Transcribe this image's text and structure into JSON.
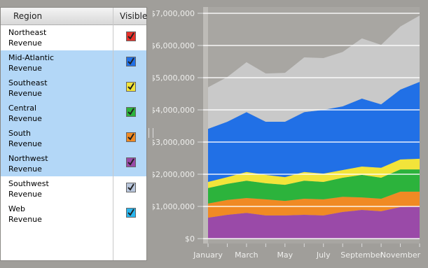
{
  "table": {
    "headers": [
      "Region",
      "Visible"
    ],
    "rows": [
      {
        "label": "Northeast\nRevenue",
        "color": "#e8312a",
        "visible": true,
        "selected": false
      },
      {
        "label": "Mid-Atlantic\nRevenue",
        "color": "#2170e6",
        "visible": true,
        "selected": true
      },
      {
        "label": "Southeast\nRevenue",
        "color": "#f2e43a",
        "visible": true,
        "selected": true
      },
      {
        "label": "Central\nRevenue",
        "color": "#2cb33c",
        "visible": true,
        "selected": true
      },
      {
        "label": "South\nRevenue",
        "color": "#f08a24",
        "visible": true,
        "selected": true
      },
      {
        "label": "Northwest\nRevenue",
        "color": "#9a4aa8",
        "visible": true,
        "selected": true
      },
      {
        "label": "Southwest\nRevenue",
        "color": "#b9c6dc",
        "visible": true,
        "selected": false
      },
      {
        "label": "Web\nRevenue",
        "color": "#29b6ee",
        "visible": true,
        "selected": false
      }
    ]
  },
  "chart_data": {
    "type": "stacked-area",
    "categories": [
      "January",
      null,
      "March",
      null,
      "May",
      null,
      "July",
      null,
      "September",
      null,
      "November",
      null
    ],
    "series": [
      {
        "color": "#9a4aa8",
        "values": [
          650000,
          740000,
          800000,
          720000,
          720000,
          740000,
          720000,
          830000,
          890000,
          850000,
          980000,
          1000000
        ]
      },
      {
        "color": "#f08a24",
        "values": [
          440000,
          460000,
          460000,
          500000,
          450000,
          500000,
          500000,
          470000,
          390000,
          390000,
          480000,
          460000
        ]
      },
      {
        "color": "#2cb33c",
        "values": [
          480000,
          500000,
          540000,
          500000,
          500000,
          560000,
          540000,
          590000,
          700000,
          650000,
          690000,
          690000
        ]
      },
      {
        "color": "#f2e43a",
        "values": [
          190000,
          210000,
          270000,
          260000,
          240000,
          270000,
          260000,
          240000,
          260000,
          310000,
          310000,
          330000
        ]
      },
      {
        "color": "#2170e6",
        "values": [
          1650000,
          1720000,
          1860000,
          1650000,
          1720000,
          1860000,
          1980000,
          1980000,
          2110000,
          1970000,
          2170000,
          2390000
        ]
      },
      {
        "color": "#c9c9c9",
        "values": [
          1290000,
          1390000,
          1550000,
          1500000,
          1520000,
          1700000,
          1610000,
          1690000,
          1870000,
          1850000,
          1960000,
          2060000
        ]
      }
    ],
    "ylim": [
      0,
      7000000
    ],
    "yticks": [
      {
        "value": 0,
        "label": "$0"
      },
      {
        "value": 1000000,
        "label": "$1,000,000"
      },
      {
        "value": 2000000,
        "label": "$2,000,000"
      },
      {
        "value": 3000000,
        "label": "$3,000,000"
      },
      {
        "value": 4000000,
        "label": "$4,000,000"
      },
      {
        "value": 5000000,
        "label": "$5,000,000"
      },
      {
        "value": 6000000,
        "label": "$6,000,000"
      },
      {
        "value": 7000000,
        "label": "$7,000,000"
      }
    ],
    "grid": true
  }
}
